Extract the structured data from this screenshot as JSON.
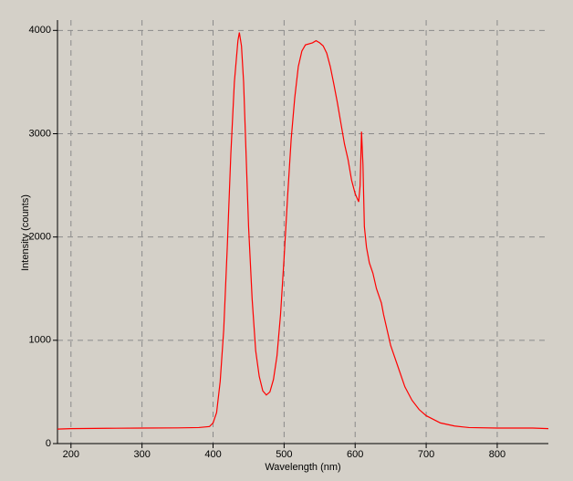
{
  "chart_data": {
    "type": "line",
    "x_label": "Wavelength (nm)",
    "y_label": "Intensity (counts)",
    "x": [
      181,
      200,
      250,
      300,
      350,
      380,
      395,
      400,
      405,
      410,
      415,
      420,
      425,
      430,
      435,
      437,
      440,
      443,
      446,
      450,
      455,
      460,
      465,
      470,
      475,
      480,
      485,
      490,
      495,
      500,
      505,
      510,
      515,
      520,
      525,
      530,
      540,
      545,
      550,
      555,
      560,
      565,
      570,
      575,
      580,
      585,
      590,
      595,
      600,
      605,
      607,
      609,
      611,
      613,
      616,
      620,
      625,
      630,
      635,
      637,
      640,
      645,
      650,
      660,
      670,
      680,
      690,
      700,
      720,
      740,
      760,
      800,
      850,
      872
    ],
    "values": [
      140,
      145,
      148,
      150,
      152,
      155,
      165,
      200,
      300,
      600,
      1100,
      1900,
      2800,
      3500,
      3900,
      3980,
      3850,
      3500,
      2900,
      2100,
      1400,
      900,
      650,
      510,
      470,
      500,
      620,
      850,
      1250,
      1800,
      2400,
      2950,
      3350,
      3650,
      3800,
      3860,
      3880,
      3900,
      3880,
      3850,
      3780,
      3650,
      3480,
      3300,
      3100,
      2900,
      2750,
      2550,
      2420,
      2340,
      2500,
      3020,
      2700,
      2100,
      1900,
      1750,
      1650,
      1500,
      1400,
      1360,
      1250,
      1100,
      950,
      750,
      550,
      420,
      330,
      270,
      200,
      170,
      155,
      150,
      150,
      145
    ],
    "color": "#ff0000",
    "xlim": [
      181,
      872
    ],
    "xticks": [
      200,
      300,
      400,
      500,
      600,
      700,
      800
    ],
    "ylim": [
      0,
      4100
    ],
    "yticks": [
      0,
      1000,
      2000,
      3000,
      4000
    ],
    "grid": true
  }
}
